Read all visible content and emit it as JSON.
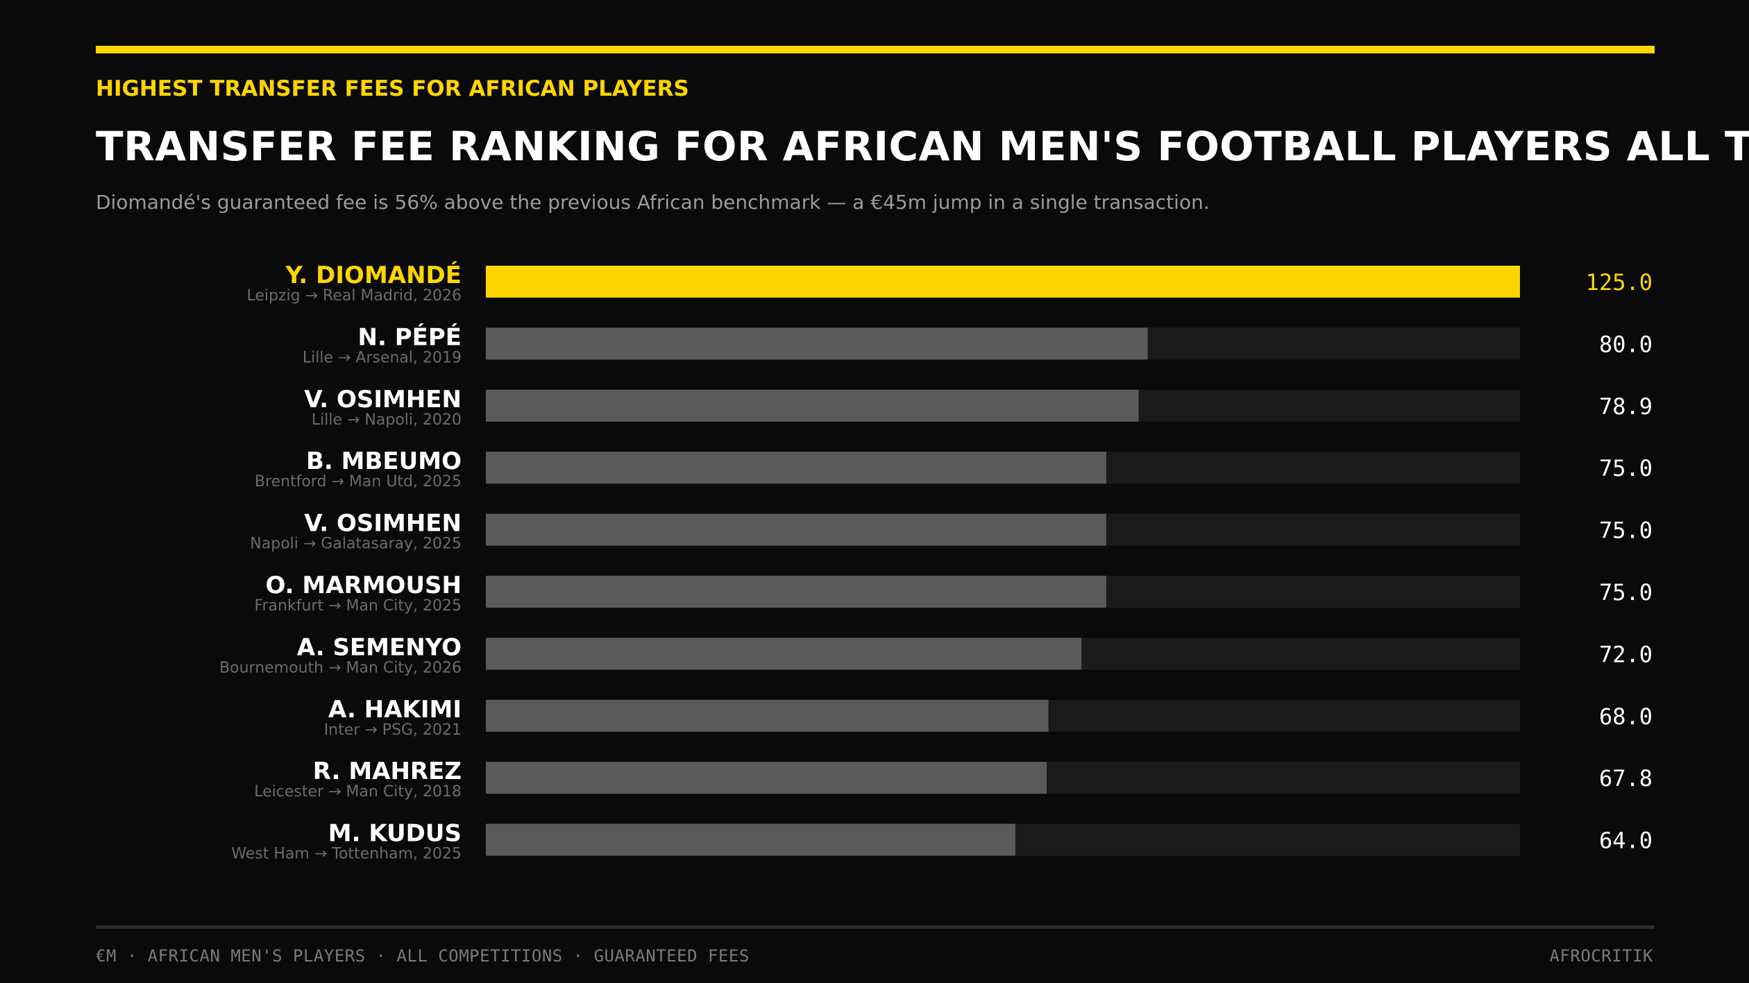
{
  "header": {
    "kicker": "HIGHEST TRANSFER FEES FOR AFRICAN PLAYERS",
    "title": "TRANSFER FEE RANKING FOR AFRICAN MEN'S FOOTBALL PLAYERS ALL TIME",
    "subtitle": "Diomandé's guaranteed fee is 56% above the previous African benchmark — a €45m jump in a single transaction."
  },
  "footer": {
    "left": "€M · AFRICAN MEN'S PLAYERS · ALL COMPETITIONS · GUARANTEED FEES",
    "right": "AFROCRITIK"
  },
  "colors": {
    "background": "#0a0a0a",
    "accent": "#ffd500",
    "bar": "#5a5a5a",
    "track": "#1a1a1a",
    "label": "#ffffff",
    "detail": "#6b6b6b"
  },
  "chart_data": {
    "type": "bar",
    "orientation": "horizontal",
    "unit": "€M",
    "xlim": [
      0,
      125
    ],
    "highlight_index": 0,
    "categories": [
      "Y. DIOMANDÉ",
      "N. PÉPÉ",
      "V. OSIMHEN",
      "B. MBEUMO",
      "V. OSIMHEN",
      "O. MARMOUSH",
      "A. SEMENYO",
      "A. HAKIMI",
      "R. MAHREZ",
      "M. KUDUS"
    ],
    "details": [
      "Leipzig → Real Madrid, 2026",
      "Lille → Arsenal, 2019",
      "Lille → Napoli, 2020",
      "Brentford → Man Utd, 2025",
      "Napoli → Galatasaray, 2025",
      "Frankfurt → Man City, 2025",
      "Bournemouth → Man City, 2026",
      "Inter → PSG, 2021",
      "Leicester → Man City, 2018",
      "West Ham → Tottenham, 2025"
    ],
    "values": [
      125.0,
      80.0,
      78.9,
      75.0,
      75.0,
      75.0,
      72.0,
      68.0,
      67.8,
      64.0
    ],
    "value_labels": [
      "125.0",
      "80.0",
      "78.9",
      "75.0",
      "75.0",
      "75.0",
      "72.0",
      "68.0",
      "67.8",
      "64.0"
    ]
  }
}
